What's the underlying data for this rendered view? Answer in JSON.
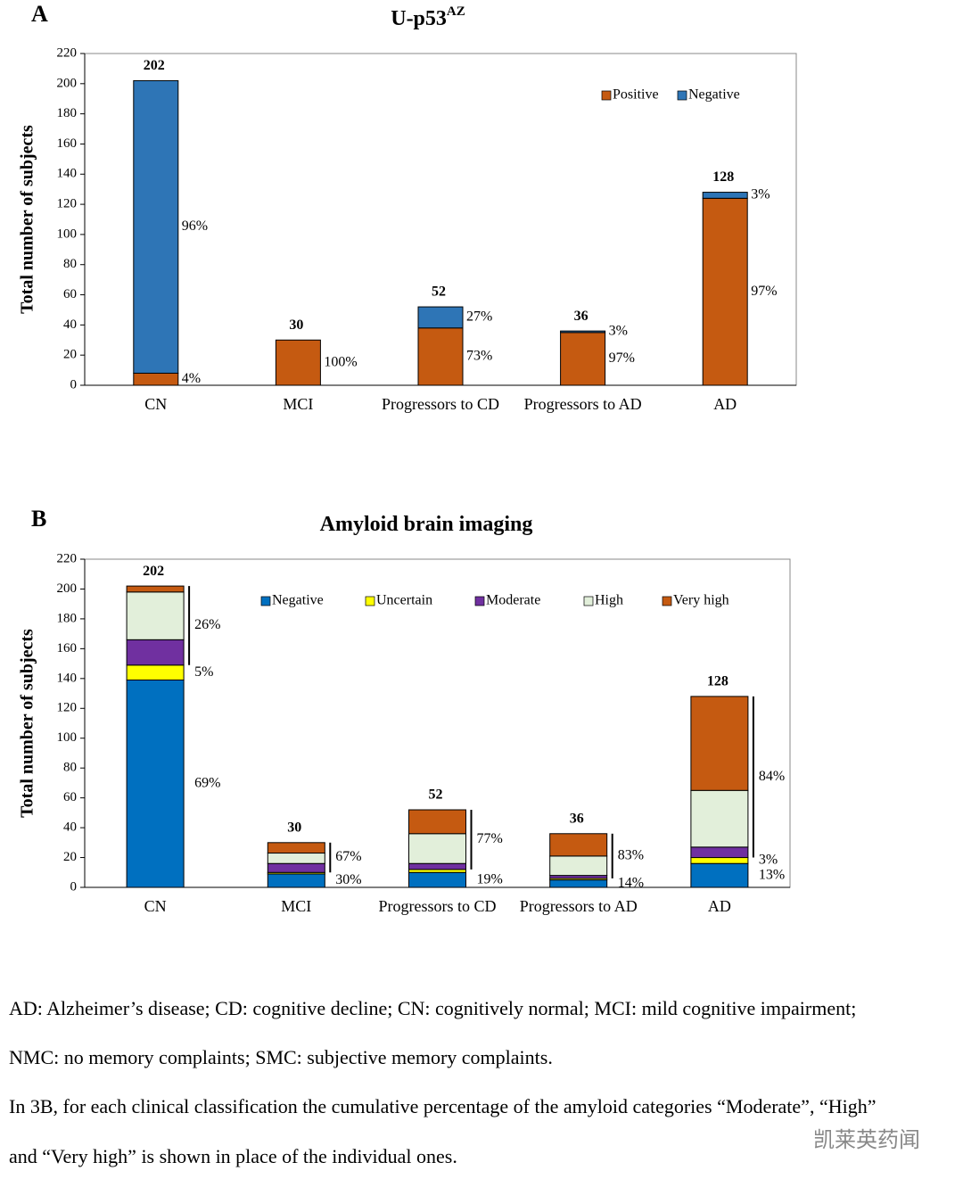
{
  "chart_data": [
    {
      "type": "stacked_bar",
      "panel": "A",
      "title": "U-p53",
      "title_superscript": "AZ",
      "y_label": "Total number of subjects",
      "categories": [
        "CN",
        "MCI",
        "Progressors to CD",
        "Progressors to AD",
        "AD"
      ],
      "series": [
        {
          "name": "Positive",
          "color": "#c55a11",
          "values": [
            8,
            30,
            38,
            35,
            124
          ],
          "percents": [
            "4%",
            "100%",
            "73%",
            "97%",
            "97%"
          ]
        },
        {
          "name": "Negative",
          "color": "#2e75b6",
          "values": [
            194,
            0,
            14,
            1,
            4
          ],
          "percents": [
            "96%",
            null,
            "27%",
            "3%",
            "3%"
          ]
        }
      ],
      "totals": [
        202,
        30,
        52,
        36,
        128
      ],
      "ylim": [
        0,
        220
      ],
      "yticks": [
        0,
        20,
        40,
        60,
        80,
        100,
        120,
        140,
        160,
        180,
        200,
        220
      ],
      "legend": "top-right",
      "grid": false
    },
    {
      "type": "stacked_bar",
      "panel": "B",
      "title": "Amyloid brain imaging",
      "y_label": "Total number of subjects",
      "categories": [
        "CN",
        "MCI",
        "Progressors to CD",
        "Progressors to AD",
        "AD"
      ],
      "series": [
        {
          "name": "Negative",
          "color": "#0070c0",
          "values": [
            139,
            9,
            10,
            5,
            16
          ],
          "percents": [
            "69%",
            "30%",
            "19%",
            "14%",
            "13%"
          ]
        },
        {
          "name": "Uncertain",
          "color": "#ffff00",
          "values": [
            10,
            1,
            2,
            1,
            4
          ],
          "percents": [
            "5%",
            null,
            null,
            null,
            "3%"
          ]
        },
        {
          "name": "Moderate",
          "color": "#7030a0",
          "values": [
            17,
            6,
            4,
            2,
            7
          ]
        },
        {
          "name": "High",
          "color": "#e2efda",
          "values": [
            32,
            7,
            20,
            13,
            38
          ]
        },
        {
          "name": "Very high",
          "color": "#c55a11",
          "values": [
            4,
            7,
            16,
            15,
            63
          ]
        }
      ],
      "cumulative_percents": [
        "26%",
        "67%",
        "77%",
        "83%",
        "84%"
      ],
      "totals": [
        202,
        30,
        52,
        36,
        128
      ],
      "ylim": [
        0,
        220
      ],
      "yticks": [
        0,
        20,
        40,
        60,
        80,
        100,
        120,
        140,
        160,
        180,
        200,
        220
      ],
      "legend": "top",
      "grid": false
    }
  ],
  "notes": [
    "AD: Alzheimer’s disease; CD: cognitive decline; CN: cognitively normal; MCI: mild cognitive impairment;",
    "NMC: no memory complaints; SMC: subjective memory complaints.",
    "In 3B,  for each clinical classification the cumulative percentage of the amyloid categories “Moderate”, “High”",
    "and “Very high” is shown in place of the individual ones."
  ],
  "watermark": "凯莱英药闻"
}
